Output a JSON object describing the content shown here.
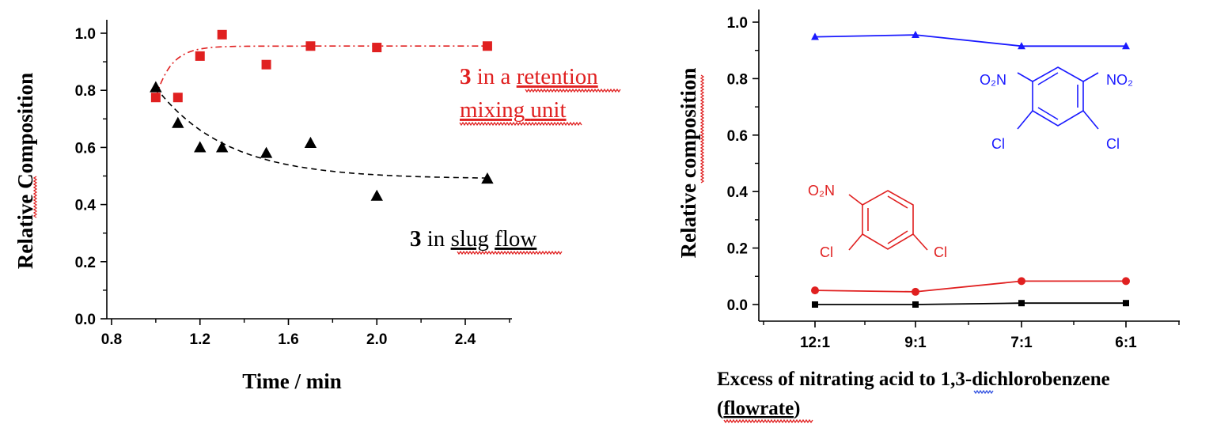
{
  "chart_data": [
    {
      "type": "scatter",
      "xlabel": "Time / min",
      "ylabel_parts": [
        "Relative ",
        "Composition"
      ],
      "xlim": [
        0.8,
        2.6
      ],
      "ylim": [
        0.0,
        1.0
      ],
      "xticks": [
        "0.8",
        "1.2",
        "1.6",
        "2.0",
        "2.4"
      ],
      "yticks": [
        "0.0",
        "0.2",
        "0.4",
        "0.6",
        "0.8",
        "1.0"
      ],
      "series": [
        {
          "color": "#e02020",
          "marker": "square",
          "fit_style": "dash-dot",
          "x": [
            1.0,
            1.1,
            1.2,
            1.3,
            1.5,
            1.7,
            2.0,
            2.5
          ],
          "y": [
            0.775,
            0.775,
            0.92,
            0.995,
            0.89,
            0.955,
            0.95,
            0.955
          ]
        },
        {
          "color": "#000000",
          "marker": "triangle",
          "fit_style": "dashed",
          "x": [
            1.0,
            1.1,
            1.2,
            1.3,
            1.5,
            1.7,
            2.0,
            2.5
          ],
          "y": [
            0.81,
            0.685,
            0.6,
            0.6,
            0.58,
            0.615,
            0.43,
            0.49
          ]
        }
      ],
      "annotations": {
        "red_num": "3",
        "red_line1_rest": " in a ",
        "red_line1_word": "retention",
        "red_line2_a": "mixing",
        "red_line2_b": "unit",
        "black_num": "3",
        "black_mid": " in ",
        "black_word1": "slug",
        "black_word2": "flow"
      }
    },
    {
      "type": "line",
      "xlabel_line1_parts": [
        "Excess of nitrating acid to 1",
        ",3",
        "-dichlorobenzene"
      ],
      "xlabel_line2_parts": [
        "(",
        "flowrate",
        ")"
      ],
      "ylabel_parts": [
        "Relative ",
        "composition"
      ],
      "categories": [
        "12:1",
        "9:1",
        "7:1",
        "6:1"
      ],
      "ylim": [
        0.0,
        1.0
      ],
      "yticks": [
        "0.0",
        "0.2",
        "0.4",
        "0.6",
        "0.8",
        "1.0"
      ],
      "series": [
        {
          "color": "#1a1aff",
          "marker": "triangle",
          "values": [
            0.948,
            0.955,
            0.915,
            0.915
          ]
        },
        {
          "color": "#e02020",
          "marker": "circle",
          "values": [
            0.05,
            0.045,
            0.083,
            0.083
          ]
        },
        {
          "color": "#000000",
          "marker": "square",
          "values": [
            0.0,
            0.0,
            0.005,
            0.005
          ]
        }
      ],
      "structures": {
        "blue_left": "O₂N",
        "blue_right": "NO₂",
        "blue_cl_left": "Cl",
        "blue_cl_right": "Cl",
        "red_top": "O₂N",
        "red_cl_left": "Cl",
        "red_cl_right": "Cl"
      }
    }
  ]
}
